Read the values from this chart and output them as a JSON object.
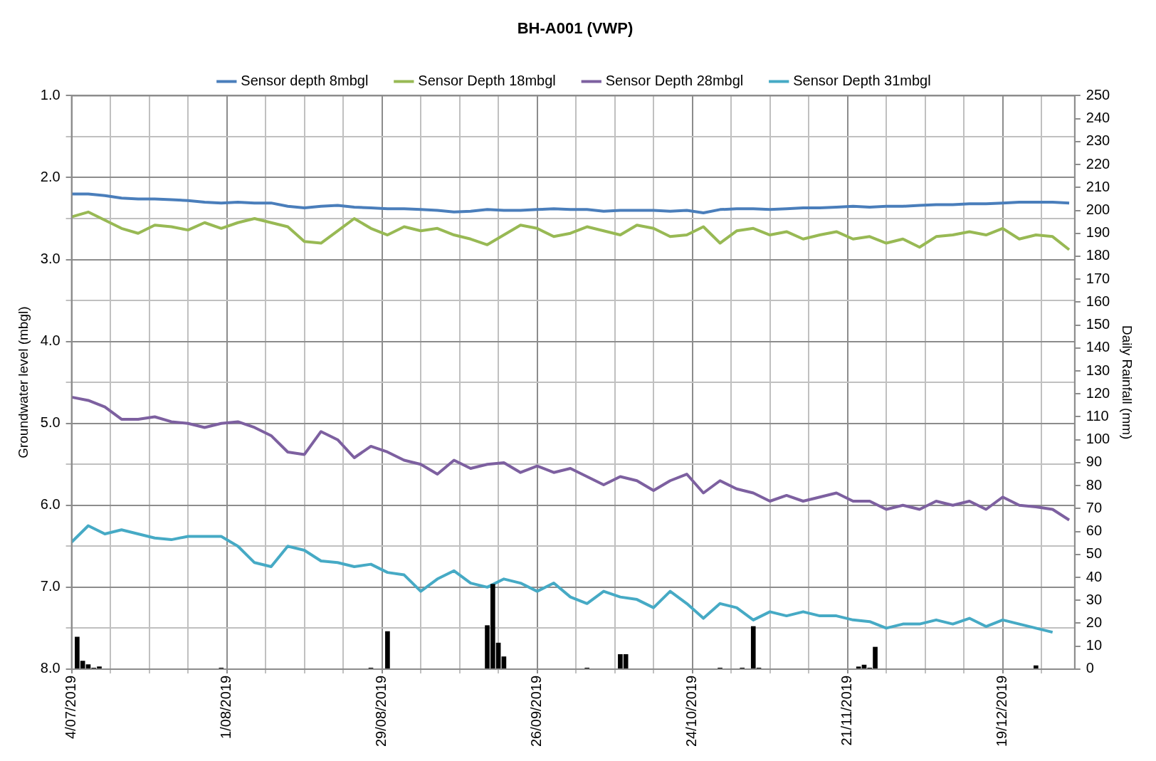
{
  "chart_data": {
    "type": "line",
    "title": "BH-A001 (VWP)",
    "ylabel": "Groundwater level (mbgl)",
    "y2label": "Daily Rainfall (mm)",
    "x": [
      "2019-07-04",
      "2019-07-07",
      "2019-07-10",
      "2019-07-13",
      "2019-07-16",
      "2019-07-19",
      "2019-07-22",
      "2019-07-25",
      "2019-07-28",
      "2019-07-31",
      "2019-08-03",
      "2019-08-06",
      "2019-08-09",
      "2019-08-12",
      "2019-08-15",
      "2019-08-18",
      "2019-08-21",
      "2019-08-24",
      "2019-08-27",
      "2019-08-30",
      "2019-09-02",
      "2019-09-05",
      "2019-09-08",
      "2019-09-11",
      "2019-09-14",
      "2019-09-17",
      "2019-09-20",
      "2019-09-23",
      "2019-09-26",
      "2019-09-29",
      "2019-10-02",
      "2019-10-05",
      "2019-10-08",
      "2019-10-11",
      "2019-10-14",
      "2019-10-17",
      "2019-10-20",
      "2019-10-23",
      "2019-10-26",
      "2019-10-29",
      "2019-11-01",
      "2019-11-04",
      "2019-11-07",
      "2019-11-10",
      "2019-11-13",
      "2019-11-16",
      "2019-11-19",
      "2019-11-22",
      "2019-11-25",
      "2019-11-28",
      "2019-12-01",
      "2019-12-04",
      "2019-12-07",
      "2019-12-10",
      "2019-12-13",
      "2019-12-16",
      "2019-12-19",
      "2019-12-22",
      "2019-12-25",
      "2019-12-28",
      "2019-12-31"
    ],
    "series": [
      {
        "name": "Sensor depth 8mbgl",
        "color": "#4a7ebb",
        "values": [
          2.2,
          2.2,
          2.22,
          2.25,
          2.26,
          2.26,
          2.27,
          2.28,
          2.3,
          2.31,
          2.3,
          2.31,
          2.31,
          2.35,
          2.37,
          2.35,
          2.34,
          2.36,
          2.37,
          2.38,
          2.38,
          2.39,
          2.4,
          2.42,
          2.41,
          2.39,
          2.4,
          2.4,
          2.39,
          2.38,
          2.39,
          2.39,
          2.41,
          2.4,
          2.4,
          2.4,
          2.41,
          2.4,
          2.43,
          2.39,
          2.38,
          2.38,
          2.39,
          2.38,
          2.37,
          2.37,
          2.36,
          2.35,
          2.36,
          2.35,
          2.35,
          2.34,
          2.33,
          2.33,
          2.32,
          2.32,
          2.31,
          2.3,
          2.3,
          2.3,
          2.31
        ]
      },
      {
        "name": "Sensor Depth 18mbgl",
        "color": "#98b954",
        "values": [
          2.48,
          2.42,
          2.52,
          2.62,
          2.68,
          2.58,
          2.6,
          2.64,
          2.55,
          2.62,
          2.55,
          2.5,
          2.55,
          2.6,
          2.78,
          2.8,
          2.65,
          2.5,
          2.62,
          2.7,
          2.6,
          2.65,
          2.62,
          2.7,
          2.75,
          2.82,
          2.7,
          2.58,
          2.62,
          2.72,
          2.68,
          2.6,
          2.65,
          2.7,
          2.58,
          2.62,
          2.72,
          2.7,
          2.6,
          2.8,
          2.65,
          2.62,
          2.7,
          2.66,
          2.75,
          2.7,
          2.66,
          2.75,
          2.72,
          2.8,
          2.75,
          2.85,
          2.72,
          2.7,
          2.66,
          2.7,
          2.62,
          2.75,
          2.7,
          2.72,
          2.88
        ]
      },
      {
        "name": "Sensor Depth 28mbgl",
        "color": "#7d60a0",
        "values": [
          4.68,
          4.72,
          4.8,
          4.95,
          4.95,
          4.92,
          4.98,
          5.0,
          5.05,
          5.0,
          4.98,
          5.05,
          5.15,
          5.35,
          5.38,
          5.1,
          5.2,
          5.42,
          5.28,
          5.35,
          5.45,
          5.5,
          5.62,
          5.45,
          5.55,
          5.5,
          5.48,
          5.6,
          5.52,
          5.6,
          5.55,
          5.65,
          5.75,
          5.65,
          5.7,
          5.82,
          5.7,
          5.62,
          5.85,
          5.7,
          5.8,
          5.85,
          5.95,
          5.88,
          5.95,
          5.9,
          5.85,
          5.95,
          5.95,
          6.05,
          6.0,
          6.05,
          5.95,
          6.0,
          5.95,
          6.05,
          5.9,
          6.0,
          6.02,
          6.05,
          6.18
        ]
      },
      {
        "name": "Sensor Depth 31mbgl",
        "color": "#46aac5",
        "values": [
          6.45,
          6.25,
          6.35,
          6.3,
          6.35,
          6.4,
          6.42,
          6.38,
          6.38,
          6.38,
          6.5,
          6.7,
          6.75,
          6.5,
          6.55,
          6.68,
          6.7,
          6.75,
          6.72,
          6.82,
          6.85,
          7.05,
          6.9,
          6.8,
          6.95,
          7.0,
          6.9,
          6.95,
          7.05,
          6.95,
          7.12,
          7.2,
          7.05,
          7.12,
          7.15,
          7.25,
          7.05,
          7.2,
          7.38,
          7.2,
          7.25,
          7.4,
          7.3,
          7.35,
          7.3,
          7.35,
          7.35,
          7.4,
          7.42,
          7.5,
          7.45,
          7.45,
          7.4,
          7.45,
          7.38,
          7.48,
          7.4,
          7.45,
          7.5,
          7.55,
          null
        ]
      },
      {
        "type": "bar",
        "axis": "y2",
        "color": "#000000",
        "x": [
          "2019-07-05",
          "2019-07-06",
          "2019-07-07",
          "2019-07-08",
          "2019-07-09",
          "2019-07-31",
          "2019-08-27",
          "2019-08-30",
          "2019-09-17",
          "2019-09-18",
          "2019-09-19",
          "2019-09-20",
          "2019-10-05",
          "2019-10-11",
          "2019-10-12",
          "2019-10-29",
          "2019-11-02",
          "2019-11-04",
          "2019-11-05",
          "2019-11-23",
          "2019-11-24",
          "2019-11-25",
          "2019-11-26",
          "2019-12-25"
        ],
        "values": [
          14,
          3.5,
          2,
          0.5,
          1,
          0.5,
          0.5,
          16.4,
          19,
          37,
          11.4,
          5.4,
          0.5,
          6.4,
          6.4,
          0.5,
          0.5,
          18.6,
          0.5,
          1,
          1.8,
          0.5,
          9.6,
          1.5
        ]
      }
    ],
    "xlim": [
      "2019-07-04",
      "2020-01-01"
    ],
    "xticks": [
      {
        "value": "2019-07-04",
        "label": "4/07/2019"
      },
      {
        "value": "2019-07-11",
        "label": null
      },
      {
        "value": "2019-07-18",
        "label": null
      },
      {
        "value": "2019-07-25",
        "label": null
      },
      {
        "value": "2019-08-01",
        "label": "1/08/2019"
      },
      {
        "value": "2019-08-08",
        "label": null
      },
      {
        "value": "2019-08-15",
        "label": null
      },
      {
        "value": "2019-08-22",
        "label": null
      },
      {
        "value": "2019-08-29",
        "label": "29/08/2019"
      },
      {
        "value": "2019-09-05",
        "label": null
      },
      {
        "value": "2019-09-12",
        "label": null
      },
      {
        "value": "2019-09-19",
        "label": null
      },
      {
        "value": "2019-09-26",
        "label": "26/09/2019"
      },
      {
        "value": "2019-10-03",
        "label": null
      },
      {
        "value": "2019-10-10",
        "label": null
      },
      {
        "value": "2019-10-17",
        "label": null
      },
      {
        "value": "2019-10-24",
        "label": "24/10/2019"
      },
      {
        "value": "2019-10-31",
        "label": null
      },
      {
        "value": "2019-11-07",
        "label": null
      },
      {
        "value": "2019-11-14",
        "label": null
      },
      {
        "value": "2019-11-21",
        "label": "21/11/2019"
      },
      {
        "value": "2019-11-28",
        "label": null
      },
      {
        "value": "2019-12-05",
        "label": null
      },
      {
        "value": "2019-12-12",
        "label": null
      },
      {
        "value": "2019-12-19",
        "label": "19/12/2019"
      },
      {
        "value": "2019-12-26",
        "label": null
      }
    ],
    "ylim": [
      8,
      1
    ],
    "yticks": [
      {
        "value": 1,
        "label": "1.0"
      },
      {
        "value": 1.5,
        "label": null
      },
      {
        "value": 2,
        "label": "2.0"
      },
      {
        "value": 2.5,
        "label": null
      },
      {
        "value": 3,
        "label": "3.0"
      },
      {
        "value": 3.5,
        "label": null
      },
      {
        "value": 4,
        "label": "4.0"
      },
      {
        "value": 4.5,
        "label": null
      },
      {
        "value": 5,
        "label": "5.0"
      },
      {
        "value": 5.5,
        "label": null
      },
      {
        "value": 6,
        "label": "6.0"
      },
      {
        "value": 6.5,
        "label": null
      },
      {
        "value": 7,
        "label": "7.0"
      },
      {
        "value": 7.5,
        "label": null
      },
      {
        "value": 8,
        "label": "8.0"
      }
    ],
    "y2lim": [
      0,
      250
    ],
    "y2ticks": [
      0,
      10,
      20,
      30,
      40,
      50,
      60,
      70,
      80,
      90,
      100,
      110,
      120,
      130,
      140,
      150,
      160,
      170,
      180,
      190,
      200,
      210,
      220,
      230,
      240,
      250
    ],
    "grid": true,
    "legend": "top"
  }
}
